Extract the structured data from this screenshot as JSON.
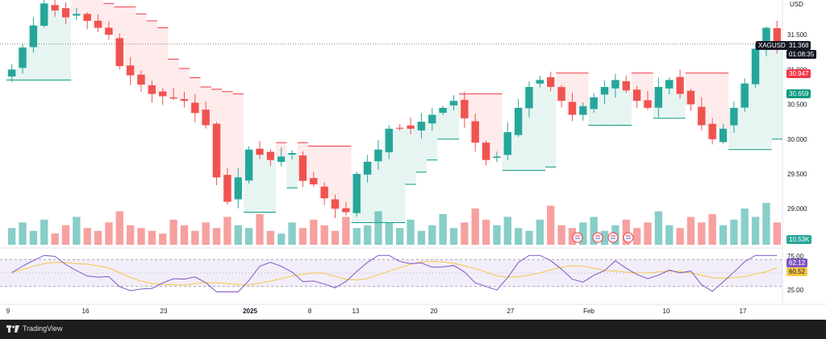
{
  "symbol": "XAGUSD",
  "currency": "USD",
  "last_price": "31.368",
  "countdown": "01:08:35",
  "upper_band_value": "30.947",
  "lower_band_value": "30.659",
  "volume_value": "10.53K",
  "rsi_value": "62.12",
  "rsi_ma_value": "60.52",
  "brand": "TradingView",
  "colors": {
    "up": "#26a69a",
    "down": "#ef5350",
    "upper_band": "#f23645",
    "lower_band": "#089981",
    "rsi_line": "#7e57c2",
    "rsi_ma": "#f7c648"
  },
  "chart_data": {
    "type": "candlestick",
    "symbol": "XAGUSD",
    "price_ticks": [
      "31.500",
      "31.000",
      "30.500",
      "30.000",
      "29.500",
      "29.000"
    ],
    "price_tick_values": [
      31.5,
      31.0,
      30.5,
      30.0,
      29.5,
      29.0
    ],
    "x_ticks": [
      "9",
      "16",
      "23",
      "2025",
      "8",
      "13",
      "20",
      "27",
      "Feb",
      "10",
      "17"
    ],
    "rsi_ticks": [
      "75.00",
      "50.00",
      "25.00"
    ],
    "rsi_tick_values": [
      75,
      50,
      25
    ],
    "rsi_levels": [
      70,
      30
    ],
    "close_path": [
      [
        0,
        31.0
      ],
      [
        3,
        31.95
      ],
      [
        5,
        31.75
      ],
      [
        6,
        31.8
      ],
      [
        9,
        31.5
      ],
      [
        10,
        31.05
      ],
      [
        13,
        30.65
      ],
      [
        16,
        30.55
      ],
      [
        18,
        30.2
      ],
      [
        19,
        29.45
      ],
      [
        20,
        29.1
      ],
      [
        21,
        29.45
      ],
      [
        22,
        29.85
      ],
      [
        24,
        29.7
      ],
      [
        26,
        29.8
      ],
      [
        27,
        29.4
      ],
      [
        28,
        29.35
      ],
      [
        29,
        29.15
      ],
      [
        30,
        29.0
      ],
      [
        31,
        28.95
      ],
      [
        32,
        29.5
      ],
      [
        34,
        29.85
      ],
      [
        35,
        30.15
      ],
      [
        37,
        30.15
      ],
      [
        39,
        30.35
      ],
      [
        40,
        30.45
      ],
      [
        41,
        30.55
      ],
      [
        42,
        30.3
      ],
      [
        43,
        29.95
      ],
      [
        44,
        29.7
      ],
      [
        45,
        29.75
      ],
      [
        46,
        30.1
      ],
      [
        47,
        30.45
      ],
      [
        48,
        30.75
      ],
      [
        49,
        30.85
      ],
      [
        50,
        30.75
      ],
      [
        51,
        30.55
      ],
      [
        52,
        30.35
      ],
      [
        54,
        30.6
      ],
      [
        55,
        30.75
      ],
      [
        56,
        30.85
      ],
      [
        57,
        30.7
      ],
      [
        58,
        30.55
      ],
      [
        59,
        30.45
      ],
      [
        60,
        30.75
      ],
      [
        61,
        30.85
      ],
      [
        62,
        30.65
      ],
      [
        63,
        30.5
      ],
      [
        64,
        30.2
      ],
      [
        65,
        30.0
      ],
      [
        66,
        30.15
      ],
      [
        67,
        30.45
      ],
      [
        68,
        30.8
      ],
      [
        69,
        31.3
      ],
      [
        70,
        31.6
      ],
      [
        71,
        31.368
      ]
    ],
    "volume": [
      6,
      8,
      5,
      9,
      4,
      7,
      10,
      6,
      5,
      8,
      12,
      7,
      6,
      5,
      4,
      9,
      7,
      5,
      8,
      6,
      10,
      7,
      6,
      11,
      5,
      4,
      8,
      6,
      9,
      7,
      5,
      10,
      6,
      7,
      12,
      8,
      6,
      9,
      5,
      7,
      11,
      6,
      8,
      13,
      9,
      7,
      10,
      6,
      5,
      9,
      14,
      7,
      6,
      8,
      10,
      5,
      7,
      9,
      6,
      8,
      12,
      7,
      6,
      10,
      8,
      11,
      7,
      9,
      13,
      10,
      15,
      8
    ]
  }
}
